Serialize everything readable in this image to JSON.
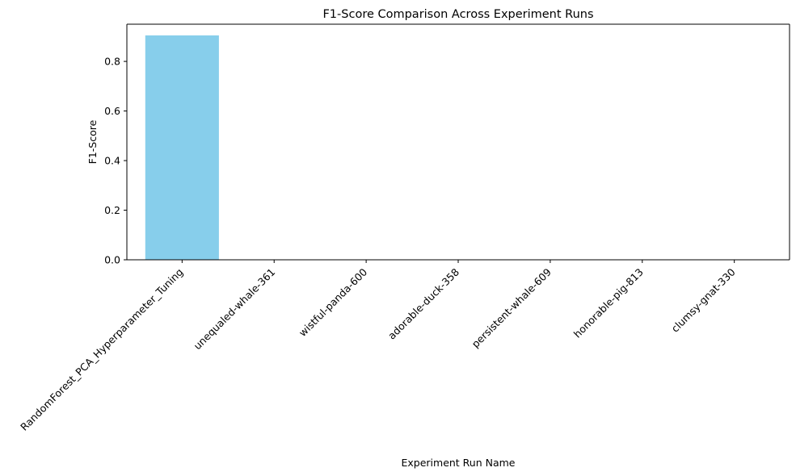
{
  "chart_data": {
    "type": "bar",
    "title": "F1-Score Comparison Across Experiment Runs",
    "xlabel": "Experiment Run Name",
    "ylabel": "F1-Score",
    "categories": [
      "RandomForest_PCA_Hyperparameter_Tuning",
      "unequaled-whale-361",
      "wistful-panda-600",
      "adorable-duck-358",
      "persistent-whale-609",
      "honorable-pig-813",
      "clumsy-gnat-330"
    ],
    "values": [
      0.905,
      0,
      0,
      0,
      0,
      0,
      0
    ],
    "ylim": [
      0,
      0.95
    ],
    "yticks": [
      0.0,
      0.2,
      0.4,
      0.6,
      0.8
    ],
    "ytick_labels": [
      "0.0",
      "0.2",
      "0.4",
      "0.6",
      "0.8"
    ],
    "grid": false,
    "colors": {
      "bar": "#87ceeb",
      "axis": "#000000",
      "text": "#000000",
      "background": "#ffffff"
    }
  }
}
